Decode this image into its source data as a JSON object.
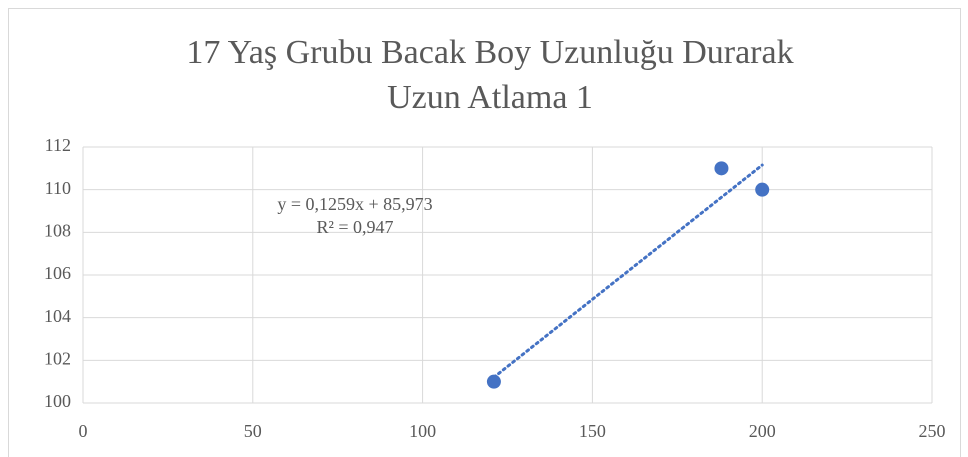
{
  "chart_data": {
    "type": "scatter",
    "title": "17 Yaş Grubu Bacak Boy Uzunluğu Durarak",
    "title_line2": "Uzun Atlama 1",
    "x": [
      121,
      188,
      200
    ],
    "values": [
      101,
      111,
      110
    ],
    "color": "#4472c4",
    "xlim": [
      0,
      250
    ],
    "xticks": [
      0,
      50,
      100,
      150,
      200,
      250
    ],
    "ylim": [
      100,
      112
    ],
    "yticks": [
      100,
      102,
      104,
      106,
      108,
      110,
      112
    ],
    "grid": true,
    "trendline": {
      "label": "y = 0,1259x + 85,973",
      "r2_label": "R² = 0,947",
      "slope": 0.1259,
      "intercept": 85.973,
      "style": "dotted"
    }
  }
}
